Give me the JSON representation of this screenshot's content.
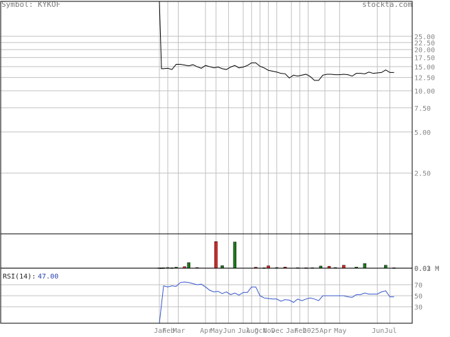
{
  "header": {
    "symbol_prefix": "Symbol:",
    "symbol": "KYKOF",
    "brand": "stockta.com"
  },
  "colors": {
    "price_line": "#000000",
    "volume_up": "#1f7a1f",
    "volume_down": "#dd2222",
    "rsi_line": "#3355cc",
    "rsi_value_text": "#2a3fae",
    "grid": "#c0c0c0",
    "axis_text": "#888888",
    "frame": "#000000"
  },
  "rsi": {
    "label": "RSI(14):",
    "value": "47.00"
  },
  "chart_data": [
    {
      "type": "line",
      "title": "",
      "scale": "log",
      "ylim": [
        0.9,
        45
      ],
      "yticks": [
        "2.50",
        "5.00",
        "7.50",
        "10.00",
        "12.50",
        "15.00",
        "17.50",
        "20.00",
        "22.50",
        "25.00"
      ],
      "xlim": [
        0,
        120
      ],
      "xticks": [
        {
          "label": "Jan",
          "x": 0
        },
        {
          "label": "Feb",
          "x": 4
        },
        {
          "label": "Mar",
          "x": 9
        },
        {
          "label": "Apr",
          "x": 22
        },
        {
          "label": "May",
          "x": 27
        },
        {
          "label": "Jun",
          "x": 33
        },
        {
          "label": "Jul",
          "x": 40
        },
        {
          "label": "Aug",
          "x": 44
        },
        {
          "label": "Oct",
          "x": 48
        },
        {
          "label": "Nov",
          "x": 52
        },
        {
          "label": "Dec",
          "x": 56
        },
        {
          "label": "Jan",
          "x": 63
        },
        {
          "label": "Feb",
          "x": 67
        },
        {
          "label": "2025",
          "x": 71
        },
        {
          "label": "Apr",
          "x": 79
        },
        {
          "label": "May",
          "x": 86
        },
        {
          "label": "Jun",
          "x": 104
        },
        {
          "label": "Jul",
          "x": 110
        }
      ],
      "grid": true,
      "series": [
        {
          "x": [
            0,
            1,
            2,
            4,
            6,
            8,
            10,
            12,
            14,
            16,
            18,
            20,
            22,
            24,
            26,
            28,
            30,
            32,
            34,
            36,
            38,
            40,
            42,
            44,
            46,
            48,
            50,
            52,
            54,
            56,
            58,
            60,
            62,
            64,
            66,
            68,
            70,
            72,
            74,
            76,
            78,
            80,
            82,
            84,
            86,
            88,
            90,
            92,
            94,
            96,
            98,
            100,
            102,
            104,
            106,
            108,
            110,
            112
          ],
          "values": [
            45,
            14.5,
            14.5,
            14.6,
            14.3,
            15.6,
            15.6,
            15.4,
            15.2,
            15.5,
            15.0,
            14.6,
            15.3,
            15.0,
            14.7,
            14.9,
            14.5,
            14.3,
            14.9,
            15.3,
            14.7,
            14.9,
            15.3,
            16.0,
            16.0,
            15.1,
            14.7,
            14.1,
            13.9,
            13.7,
            13.4,
            13.3,
            12.4,
            13.0,
            12.8,
            13.0,
            13.2,
            12.7,
            11.9,
            11.9,
            13.0,
            13.2,
            13.2,
            13.1,
            13.1,
            13.2,
            13.1,
            12.8,
            13.4,
            13.4,
            13.3,
            13.7,
            13.4,
            13.5,
            13.6,
            14.2,
            13.6,
            13.6
          ]
        }
      ]
    },
    {
      "type": "bar",
      "title": "",
      "ylim": [
        0,
        0.04
      ],
      "yticks": [
        "0.01 M",
        "0.02 M",
        "0.03 M"
      ],
      "xlim": [
        0,
        120
      ],
      "series": [
        {
          "name": "up",
          "x": [
            2,
            4,
            8,
            14,
            30,
            36,
            50,
            56,
            73,
            77,
            84,
            94,
            98,
            108,
            112
          ],
          "values": [
            0.0005,
            0.0008,
            0.0012,
            0.0065,
            0.003,
            0.0305,
            0.0005,
            0.0008,
            0.0006,
            0.0025,
            0.0008,
            0.0013,
            0.0055,
            0.0035,
            0.0005
          ]
        },
        {
          "name": "down",
          "x": [
            0,
            1,
            6,
            12,
            18,
            27,
            46,
            52,
            60,
            66,
            70,
            81,
            88
          ],
          "values": [
            0.0004,
            0.0004,
            0.0005,
            0.0018,
            0.0008,
            0.031,
            0.0012,
            0.0028,
            0.0014,
            0.0006,
            0.0005,
            0.0023,
            0.0035
          ]
        }
      ]
    },
    {
      "type": "line",
      "title": "",
      "ylim": [
        0,
        100
      ],
      "yticks": [
        "30",
        "50",
        "70"
      ],
      "xlim": [
        0,
        120
      ],
      "series": [
        {
          "x": [
            0,
            2,
            4,
            6,
            8,
            10,
            12,
            14,
            16,
            18,
            20,
            22,
            24,
            26,
            28,
            30,
            32,
            34,
            36,
            38,
            40,
            42,
            44,
            46,
            48,
            50,
            52,
            54,
            56,
            58,
            60,
            62,
            64,
            66,
            68,
            70,
            72,
            74,
            76,
            78,
            80,
            82,
            84,
            86,
            88,
            90,
            92,
            94,
            96,
            98,
            100,
            102,
            104,
            106,
            108,
            110,
            112
          ],
          "values": [
            0,
            68,
            66,
            68,
            67,
            74,
            75,
            74,
            72,
            70,
            71,
            66,
            60,
            57,
            58,
            54,
            57,
            52,
            55,
            51,
            56,
            56,
            66,
            66,
            50,
            46,
            45,
            44,
            44,
            40,
            43,
            42,
            38,
            44,
            41,
            44,
            46,
            44,
            41,
            50,
            50,
            50,
            50,
            50,
            50,
            48,
            47,
            52,
            52,
            55,
            53,
            53,
            53,
            57,
            59,
            48,
            48
          ]
        }
      ]
    }
  ]
}
